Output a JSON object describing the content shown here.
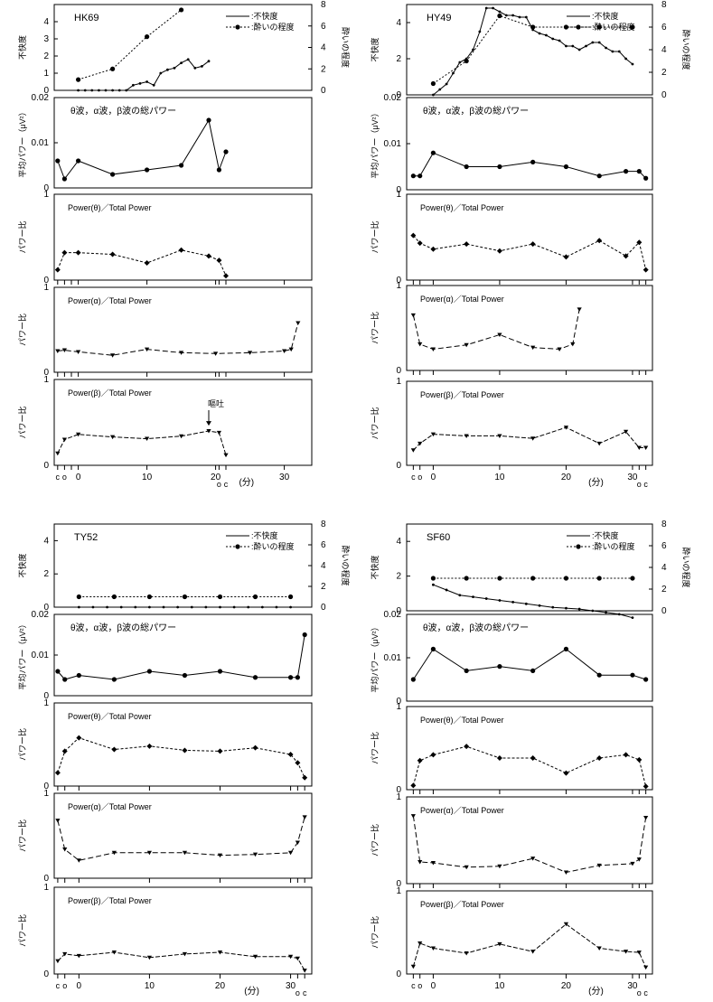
{
  "labels": {
    "discomfort": "不快度",
    "sickness": "酔いの程度",
    "avg_power": "平均パワー（μV²）",
    "ratio": "パワー比",
    "total_title": "θ波，α波，β波の総パワー",
    "theta_title": "Power(θ)／Total Power",
    "alpha_title": "Power(α)／Total Power",
    "beta_title": "Power(β)／Total Power",
    "legend_discomfort": ":不快度",
    "legend_sickness": ":酔いの程度",
    "unit_min": "(分)",
    "xlabel_c": "c",
    "xlabel_o": "o",
    "vomit": "嘔吐"
  },
  "chart_data": [
    {
      "subject": "HK69",
      "type": "line",
      "x_ticks": [
        0,
        10,
        20,
        30
      ],
      "xlim": [
        -3.5,
        34
      ],
      "extra_ticks": [
        -3,
        -2,
        -1,
        20.5,
        21.5
      ],
      "x_letters": {
        "left": [
          "c",
          "o"
        ],
        "right": [
          "o",
          "c"
        ]
      },
      "vomit_x": 19,
      "discomfort": {
        "ylim": [
          0,
          5
        ],
        "yticks": [
          0,
          1,
          2,
          3,
          4
        ],
        "x": [
          0,
          1,
          2,
          3,
          4,
          5,
          6,
          7,
          8,
          9,
          10,
          11,
          12,
          13,
          14,
          15,
          16,
          17,
          18,
          19
        ],
        "values": [
          0,
          0,
          0,
          0,
          0,
          0,
          0,
          0,
          0.3,
          0.4,
          0.5,
          0.3,
          1.0,
          1.2,
          1.3,
          1.6,
          1.8,
          1.3,
          1.4,
          1.7
        ]
      },
      "sickness": {
        "ylim": [
          0,
          8
        ],
        "yticks": [
          0,
          2,
          4,
          6,
          8
        ],
        "x": [
          0,
          5,
          10,
          15
        ],
        "values": [
          1,
          2,
          5,
          7.5
        ]
      },
      "total_power": {
        "ylim": [
          0,
          0.02
        ],
        "yticks": [
          0,
          0.01,
          0.02
        ],
        "x": [
          -3,
          -2,
          0,
          5,
          10,
          15,
          19,
          20.5,
          21.5
        ],
        "values": [
          0.006,
          0.002,
          0.006,
          0.003,
          0.004,
          0.005,
          0.015,
          0.004,
          0.008
        ]
      },
      "theta": {
        "ylim": [
          0,
          1
        ],
        "yticks": [
          0,
          1
        ],
        "x": [
          -3,
          -2,
          0,
          5,
          10,
          15,
          19,
          20.5,
          21.5
        ],
        "values": [
          0.12,
          0.32,
          0.32,
          0.3,
          0.2,
          0.35,
          0.28,
          0.23,
          0.05
        ]
      },
      "alpha": {
        "ylim": [
          0,
          1
        ],
        "yticks": [
          0,
          1
        ],
        "x": [
          -3,
          -2,
          0,
          5,
          10,
          15,
          20,
          25,
          30,
          31,
          32
        ],
        "values": [
          0.25,
          0.26,
          0.24,
          0.2,
          0.27,
          0.23,
          0.22,
          0.23,
          0.25,
          0.27,
          0.58
        ]
      },
      "beta": {
        "ylim": [
          0,
          1
        ],
        "yticks": [
          0,
          1
        ],
        "x": [
          -3,
          -2,
          0,
          5,
          10,
          15,
          19,
          20.5,
          21.5
        ],
        "values": [
          0.14,
          0.3,
          0.36,
          0.33,
          0.31,
          0.34,
          0.4,
          0.38,
          0.12
        ]
      }
    },
    {
      "subject": "HY49",
      "type": "line",
      "x_ticks": [
        0,
        10,
        20,
        30
      ],
      "xlim": [
        -4,
        33
      ],
      "extra_ticks": [
        -3,
        -2,
        31,
        32
      ],
      "x_letters": {
        "left": [
          "c",
          "o"
        ],
        "right": [
          "o",
          "c"
        ]
      },
      "vomit_x": null,
      "discomfort": {
        "ylim": [
          0,
          5
        ],
        "yticks": [
          0,
          2,
          4
        ],
        "x": [
          0,
          1,
          2,
          3,
          4,
          5,
          6,
          7,
          8,
          9,
          10,
          11,
          12,
          13,
          14,
          15,
          16,
          17,
          18,
          19,
          20,
          21,
          22,
          23,
          24,
          25,
          26,
          27,
          28,
          29,
          30
        ],
        "values": [
          0,
          0.3,
          0.6,
          1.2,
          1.8,
          2.0,
          2.5,
          3.5,
          4.8,
          4.8,
          4.6,
          4.4,
          4.4,
          4.3,
          4.3,
          3.6,
          3.4,
          3.3,
          3.1,
          3.0,
          2.7,
          2.7,
          2.5,
          2.7,
          2.9,
          2.9,
          2.6,
          2.4,
          2.4,
          2.0,
          1.7
        ]
      },
      "sickness": {
        "ylim": [
          0,
          8
        ],
        "yticks": [
          0,
          2,
          4,
          6,
          8
        ],
        "x": [
          0,
          5,
          10,
          15,
          20,
          25,
          30
        ],
        "values": [
          1,
          3,
          7,
          6,
          6,
          6,
          6
        ]
      },
      "total_power": {
        "ylim": [
          0,
          0.02
        ],
        "yticks": [
          0,
          0.01,
          0.02
        ],
        "x": [
          -3,
          -2,
          0,
          5,
          10,
          15,
          20,
          25,
          29,
          31,
          32
        ],
        "values": [
          0.003,
          0.003,
          0.008,
          0.005,
          0.005,
          0.006,
          0.005,
          0.003,
          0.004,
          0.004,
          0.0025
        ]
      },
      "theta": {
        "ylim": [
          0,
          1
        ],
        "yticks": [
          0,
          1
        ],
        "x": [
          -3,
          -2,
          0,
          5,
          10,
          15,
          20,
          25,
          29,
          31,
          32
        ],
        "values": [
          0.52,
          0.43,
          0.36,
          0.42,
          0.34,
          0.42,
          0.27,
          0.46,
          0.28,
          0.44,
          0.12
        ]
      },
      "alpha": {
        "ylim": [
          0,
          1
        ],
        "yticks": [
          0,
          1
        ],
        "x": [
          -3,
          -2,
          0,
          5,
          10,
          15,
          19,
          21,
          22
        ],
        "values": [
          0.65,
          0.31,
          0.25,
          0.3,
          0.42,
          0.27,
          0.25,
          0.31,
          0.72
        ]
      },
      "beta": {
        "ylim": [
          0,
          1
        ],
        "yticks": [
          0,
          1
        ],
        "x": [
          -3,
          -2,
          0,
          5,
          10,
          15,
          20,
          25,
          29,
          31,
          32
        ],
        "values": [
          0.18,
          0.26,
          0.37,
          0.35,
          0.35,
          0.32,
          0.45,
          0.26,
          0.4,
          0.21,
          0.21
        ]
      }
    },
    {
      "subject": "TY52",
      "type": "line",
      "x_ticks": [
        0,
        10,
        20,
        30
      ],
      "xlim": [
        -3.5,
        33
      ],
      "extra_ticks": [
        -3,
        -2,
        31,
        32
      ],
      "x_letters": {
        "left": [
          "c",
          "o"
        ],
        "right": [
          "o",
          "c"
        ]
      },
      "vomit_x": null,
      "discomfort": {
        "ylim": [
          0,
          5
        ],
        "yticks": [
          0,
          2,
          4
        ],
        "x": [
          0,
          2,
          4,
          6,
          8,
          10,
          12,
          14,
          16,
          18,
          20,
          22,
          24,
          26,
          28,
          30
        ],
        "values": [
          0,
          0,
          0,
          0,
          0,
          0,
          0,
          0,
          0,
          0,
          0,
          0,
          0,
          0,
          0,
          0
        ]
      },
      "sickness": {
        "ylim": [
          0,
          8
        ],
        "yticks": [
          0,
          2,
          4,
          6,
          8
        ],
        "x": [
          0,
          5,
          10,
          15,
          20,
          25,
          30
        ],
        "values": [
          1,
          1,
          1,
          1,
          1,
          1,
          1
        ]
      },
      "total_power": {
        "ylim": [
          0,
          0.02
        ],
        "yticks": [
          0,
          0.01,
          0.02
        ],
        "x": [
          -3,
          -2,
          0,
          5,
          10,
          15,
          20,
          25,
          30,
          31,
          32
        ],
        "values": [
          0.006,
          0.004,
          0.005,
          0.004,
          0.006,
          0.005,
          0.006,
          0.0045,
          0.0045,
          0.0045,
          0.015
        ]
      },
      "theta": {
        "ylim": [
          0,
          1
        ],
        "yticks": [
          0,
          1
        ],
        "x": [
          -3,
          -2,
          0,
          5,
          10,
          15,
          20,
          25,
          30,
          31,
          32
        ],
        "values": [
          0.16,
          0.42,
          0.58,
          0.44,
          0.48,
          0.43,
          0.42,
          0.46,
          0.38,
          0.28,
          0.1
        ]
      },
      "alpha": {
        "ylim": [
          0,
          1
        ],
        "yticks": [
          0,
          1
        ],
        "x": [
          -3,
          -2,
          0,
          5,
          10,
          15,
          20,
          25,
          30,
          31,
          32
        ],
        "values": [
          0.68,
          0.34,
          0.21,
          0.3,
          0.3,
          0.3,
          0.27,
          0.28,
          0.3,
          0.42,
          0.72
        ]
      },
      "beta": {
        "ylim": [
          0,
          1
        ],
        "yticks": [
          0,
          1
        ],
        "x": [
          -3,
          -2,
          0,
          5,
          10,
          15,
          20,
          25,
          30,
          31,
          32
        ],
        "values": [
          0.15,
          0.23,
          0.21,
          0.25,
          0.19,
          0.23,
          0.25,
          0.2,
          0.2,
          0.18,
          0.04
        ]
      }
    },
    {
      "subject": "SF60",
      "type": "line",
      "x_ticks": [
        0,
        10,
        20,
        30
      ],
      "xlim": [
        -4,
        33
      ],
      "extra_ticks": [
        -3,
        -2,
        31,
        32
      ],
      "x_letters": {
        "left": [
          "c",
          "o"
        ],
        "right": [
          "o",
          "c"
        ]
      },
      "vomit_x": null,
      "discomfort": {
        "ylim": [
          0,
          5
        ],
        "yticks": [
          0,
          2,
          4
        ],
        "x": [
          0,
          2,
          4,
          6,
          8,
          10,
          12,
          14,
          16,
          18,
          20,
          22,
          24,
          26,
          28,
          30
        ],
        "values": [
          1.5,
          1.2,
          0.9,
          0.8,
          0.7,
          0.6,
          0.5,
          0.4,
          0.3,
          0.2,
          0.15,
          0.1,
          0.0,
          -0.1,
          -0.2,
          -0.4
        ]
      },
      "sickness": {
        "ylim": [
          0,
          8
        ],
        "yticks": [
          0,
          2,
          4,
          6,
          8
        ],
        "x": [
          0,
          5,
          10,
          15,
          20,
          25,
          30
        ],
        "values": [
          3,
          3,
          3,
          3,
          3,
          3,
          3
        ]
      },
      "total_power": {
        "ylim": [
          0,
          0.02
        ],
        "yticks": [
          0,
          0.01,
          0.02
        ],
        "x": [
          -3,
          0,
          5,
          10,
          15,
          20,
          25,
          30,
          32
        ],
        "values": [
          0.005,
          0.012,
          0.007,
          0.008,
          0.007,
          0.012,
          0.006,
          0.006,
          0.005
        ]
      },
      "theta": {
        "ylim": [
          0,
          1
        ],
        "yticks": [
          0,
          1
        ],
        "x": [
          -3,
          -2,
          0,
          5,
          10,
          15,
          20,
          25,
          29,
          31,
          32
        ],
        "values": [
          0.05,
          0.35,
          0.42,
          0.52,
          0.38,
          0.38,
          0.2,
          0.38,
          0.42,
          0.36,
          0.04
        ]
      },
      "alpha": {
        "ylim": [
          0,
          1
        ],
        "yticks": [
          0,
          1
        ],
        "x": [
          -3,
          -2,
          0,
          5,
          10,
          15,
          20,
          25,
          30,
          31,
          32
        ],
        "values": [
          0.78,
          0.25,
          0.24,
          0.19,
          0.2,
          0.29,
          0.13,
          0.21,
          0.23,
          0.28,
          0.76
        ]
      },
      "beta": {
        "ylim": [
          0,
          1
        ],
        "yticks": [
          0,
          1
        ],
        "x": [
          -3,
          -2,
          0,
          5,
          10,
          15,
          20,
          25,
          29,
          31,
          32
        ],
        "values": [
          0.09,
          0.37,
          0.31,
          0.25,
          0.36,
          0.27,
          0.6,
          0.31,
          0.27,
          0.26,
          0.08
        ]
      }
    }
  ]
}
